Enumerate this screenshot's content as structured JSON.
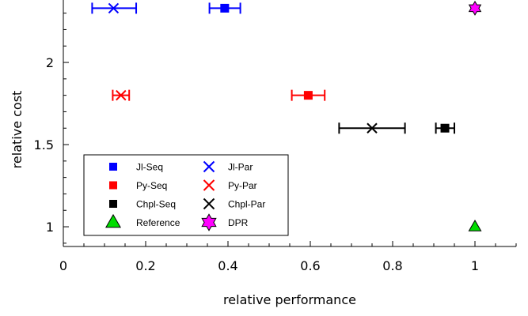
{
  "chart_data": {
    "type": "scatter",
    "xlabel": "relative performance",
    "ylabel": "relative cost",
    "xlim": [
      0,
      1.1
    ],
    "ylim": [
      0.88,
      2.38
    ],
    "x_ticks": [
      "0",
      "0.2",
      "0.4",
      "0.6",
      "0.8",
      "1"
    ],
    "x_tick_values": [
      0,
      0.2,
      0.4,
      0.6,
      0.8,
      1.0
    ],
    "x_minor_step": 0.05,
    "y_ticks": [
      "1",
      "1.5",
      "2"
    ],
    "y_tick_values": [
      1.0,
      1.5,
      2.0
    ],
    "y_minor_step": 0.1,
    "grid": false,
    "legend_position": "lower-left",
    "series": [
      {
        "name": "Jl-Seq",
        "marker": "square",
        "color": "#0000ff",
        "points": [
          {
            "x": 0.392,
            "y": 2.33,
            "xerr": [
              0.355,
              0.43
            ]
          }
        ]
      },
      {
        "name": "Jl-Par",
        "marker": "x",
        "color": "#0000ff",
        "points": [
          {
            "x": 0.122,
            "y": 2.33,
            "xerr": [
              0.07,
              0.177
            ]
          }
        ]
      },
      {
        "name": "Py-Seq",
        "marker": "square",
        "color": "#ff0000",
        "points": [
          {
            "x": 0.595,
            "y": 1.8,
            "xerr": [
              0.555,
              0.635
            ]
          }
        ]
      },
      {
        "name": "Py-Par",
        "marker": "x",
        "color": "#ff0000",
        "points": [
          {
            "x": 0.14,
            "y": 1.8,
            "xerr": [
              0.12,
              0.16
            ]
          }
        ]
      },
      {
        "name": "Chpl-Seq",
        "marker": "square",
        "color": "#000000",
        "points": [
          {
            "x": 0.927,
            "y": 1.6,
            "xerr": [
              0.905,
              0.95
            ]
          }
        ]
      },
      {
        "name": "Chpl-Par",
        "marker": "x",
        "color": "#000000",
        "points": [
          {
            "x": 0.75,
            "y": 1.6,
            "xerr": [
              0.67,
              0.83
            ]
          }
        ]
      },
      {
        "name": "Reference",
        "marker": "triangle",
        "color": "#00dd00",
        "points": [
          {
            "x": 1.0,
            "y": 1.0
          }
        ]
      },
      {
        "name": "DPR",
        "marker": "hexagram",
        "color": "#ff00ff",
        "points": [
          {
            "x": 1.0,
            "y": 2.33
          }
        ]
      }
    ],
    "legend_order": [
      [
        0,
        1
      ],
      [
        2,
        3
      ],
      [
        4,
        5
      ],
      [
        6,
        7
      ]
    ]
  }
}
